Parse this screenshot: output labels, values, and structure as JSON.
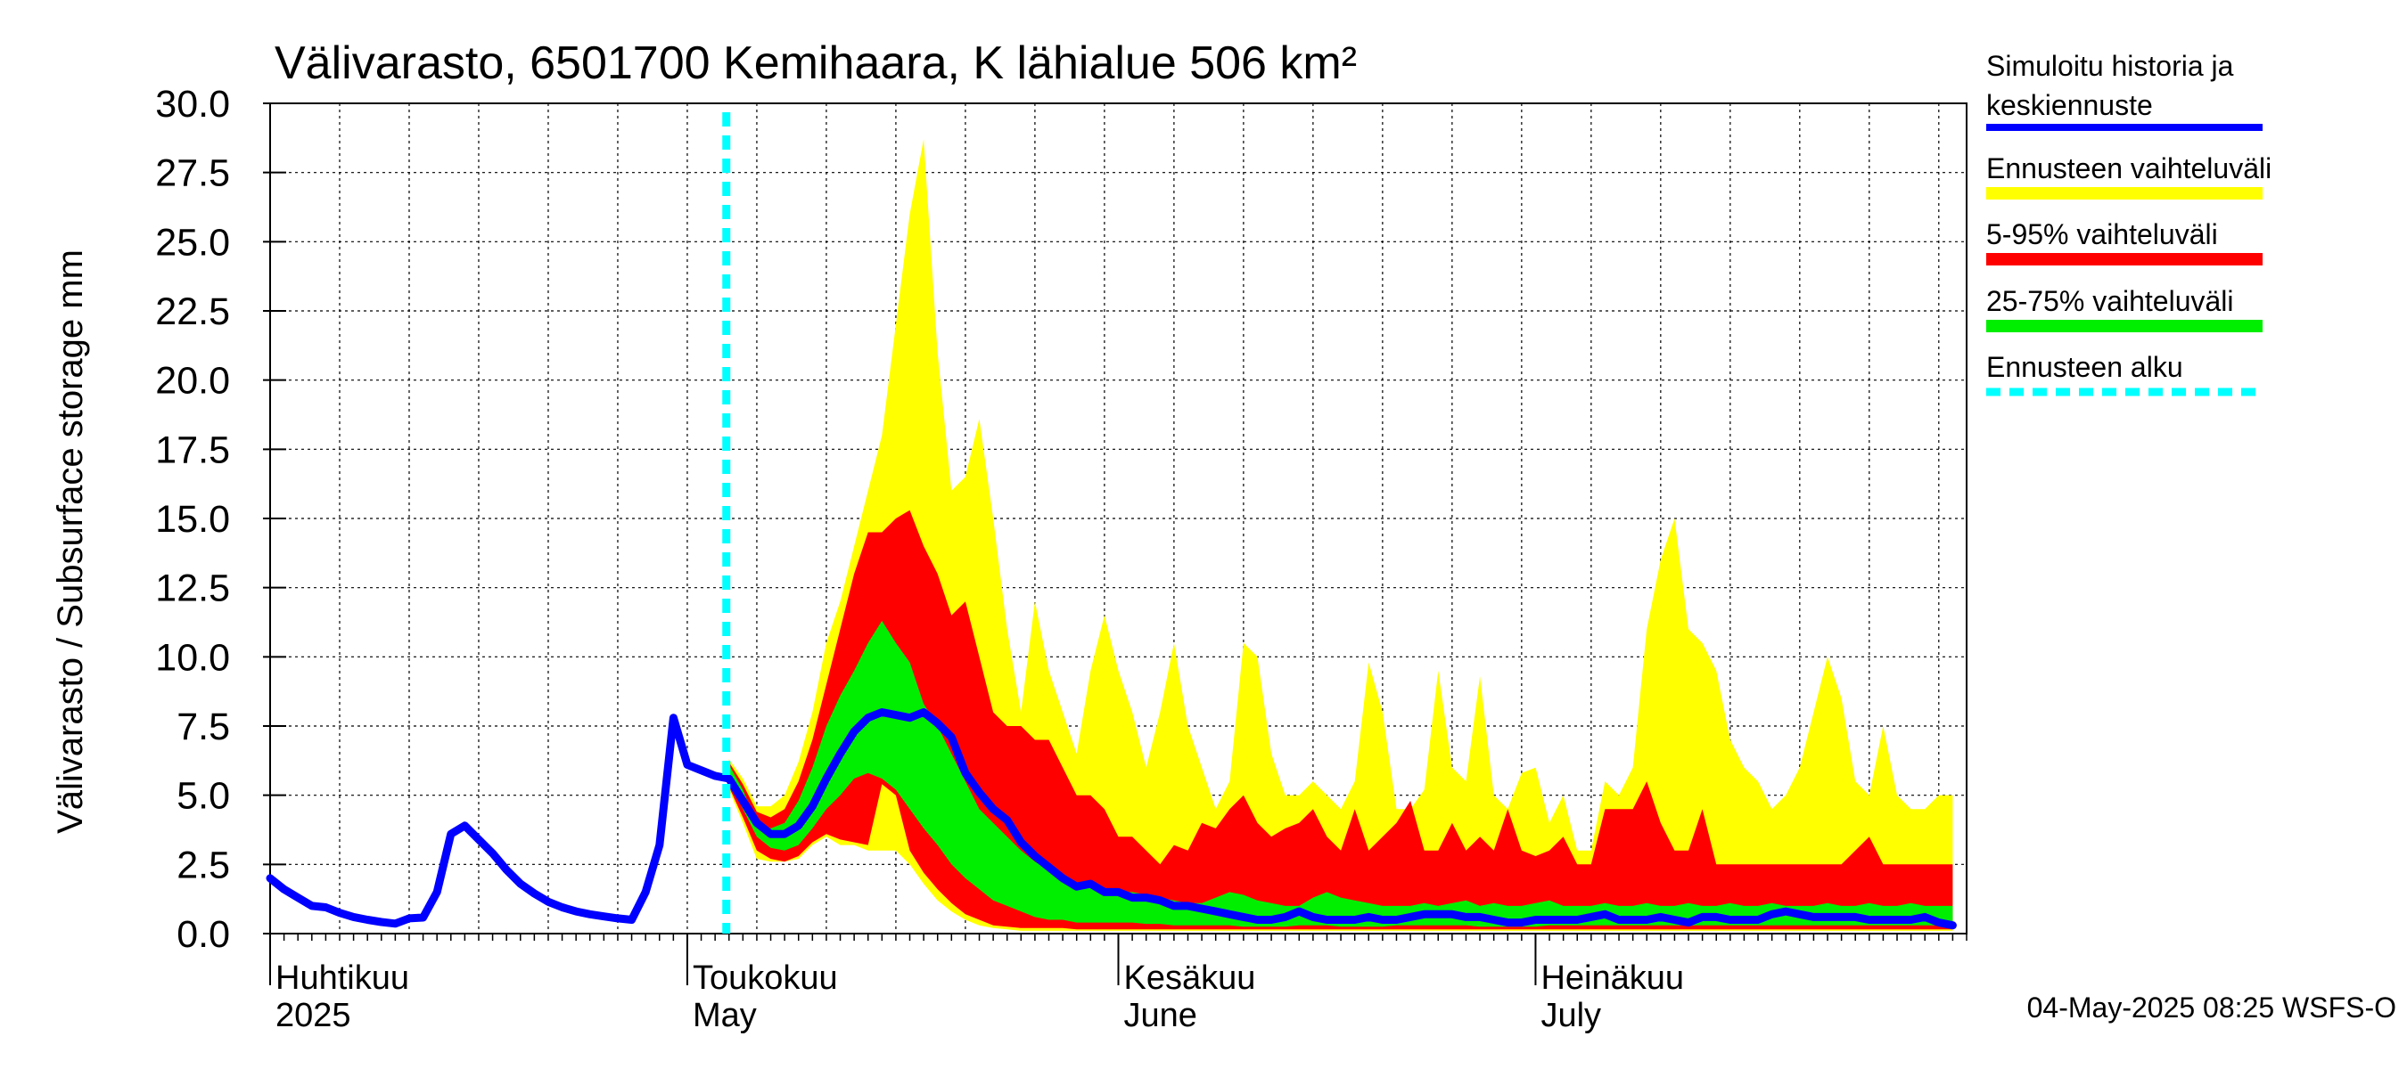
{
  "chart_data": {
    "type": "area",
    "title": "Välivarasto, 6501700 Kemihaara, K lähialue 506 km²",
    "ylabel": "Välivarasto / Subsurface storage  mm",
    "ylim": [
      0,
      30
    ],
    "yticks": [
      "0.0",
      "2.5",
      "5.0",
      "7.5",
      "10.0",
      "12.5",
      "15.0",
      "17.5",
      "20.0",
      "22.5",
      "25.0",
      "27.5",
      "30.0"
    ],
    "x_start": "2025-04-01",
    "x_end": "2025-07-31",
    "forecast_start": "2025-05-04",
    "grid": true,
    "months": [
      {
        "date": "2025-04-01",
        "line1": "Huhtikuu",
        "line2": "2025"
      },
      {
        "date": "2025-05-01",
        "line1": "Toukokuu",
        "line2": "May"
      },
      {
        "date": "2025-06-01",
        "line1": "Kesäkuu",
        "line2": "June"
      },
      {
        "date": "2025-07-01",
        "line1": "Heinäkuu",
        "line2": "July"
      }
    ],
    "history": {
      "dates": [
        "2025-04-01",
        "2025-04-02",
        "2025-04-03",
        "2025-04-04",
        "2025-04-05",
        "2025-04-06",
        "2025-04-07",
        "2025-04-08",
        "2025-04-09",
        "2025-04-10",
        "2025-04-11",
        "2025-04-12",
        "2025-04-13",
        "2025-04-14",
        "2025-04-15",
        "2025-04-16",
        "2025-04-17",
        "2025-04-18",
        "2025-04-19",
        "2025-04-20",
        "2025-04-21",
        "2025-04-22",
        "2025-04-23",
        "2025-04-24",
        "2025-04-25",
        "2025-04-26",
        "2025-04-27",
        "2025-04-28",
        "2025-04-29",
        "2025-04-30",
        "2025-05-01",
        "2025-05-02",
        "2025-05-03",
        "2025-05-04"
      ],
      "values": [
        2.0,
        1.6,
        1.3,
        1.0,
        0.95,
        0.75,
        0.6,
        0.5,
        0.42,
        0.36,
        0.55,
        0.58,
        1.5,
        3.6,
        3.9,
        3.4,
        2.9,
        2.3,
        1.8,
        1.45,
        1.15,
        0.95,
        0.8,
        0.7,
        0.62,
        0.55,
        0.5,
        1.5,
        3.2,
        7.8,
        6.1,
        5.9,
        5.7,
        5.6
      ]
    },
    "forecast": {
      "dates": [
        "2025-05-04",
        "2025-05-05",
        "2025-05-06",
        "2025-05-07",
        "2025-05-08",
        "2025-05-09",
        "2025-05-10",
        "2025-05-11",
        "2025-05-12",
        "2025-05-13",
        "2025-05-14",
        "2025-05-15",
        "2025-05-16",
        "2025-05-17",
        "2025-05-18",
        "2025-05-19",
        "2025-05-20",
        "2025-05-21",
        "2025-05-22",
        "2025-05-23",
        "2025-05-24",
        "2025-05-25",
        "2025-05-26",
        "2025-05-27",
        "2025-05-28",
        "2025-05-29",
        "2025-05-30",
        "2025-05-31",
        "2025-06-01",
        "2025-06-02",
        "2025-06-03",
        "2025-06-04",
        "2025-06-05",
        "2025-06-06",
        "2025-06-07",
        "2025-06-08",
        "2025-06-09",
        "2025-06-10",
        "2025-06-11",
        "2025-06-12",
        "2025-06-13",
        "2025-06-14",
        "2025-06-15",
        "2025-06-16",
        "2025-06-17",
        "2025-06-18",
        "2025-06-19",
        "2025-06-20",
        "2025-06-21",
        "2025-06-22",
        "2025-06-23",
        "2025-06-24",
        "2025-06-25",
        "2025-06-26",
        "2025-06-27",
        "2025-06-28",
        "2025-06-29",
        "2025-06-30",
        "2025-07-01",
        "2025-07-02",
        "2025-07-03",
        "2025-07-04",
        "2025-07-05",
        "2025-07-06",
        "2025-07-07",
        "2025-07-08",
        "2025-07-09",
        "2025-07-10",
        "2025-07-11",
        "2025-07-12",
        "2025-07-13",
        "2025-07-14",
        "2025-07-15",
        "2025-07-16",
        "2025-07-17",
        "2025-07-18",
        "2025-07-19",
        "2025-07-20",
        "2025-07-21",
        "2025-07-22",
        "2025-07-23",
        "2025-07-24",
        "2025-07-25",
        "2025-07-26",
        "2025-07-27",
        "2025-07-28",
        "2025-07-29",
        "2025-07-30",
        "2025-07-31"
      ],
      "yellow_upper": [
        6.3,
        5.6,
        4.6,
        4.6,
        5.0,
        6.2,
        8.0,
        10.5,
        12.0,
        14.0,
        16.0,
        18.0,
        22.0,
        26.0,
        28.7,
        21.0,
        16.0,
        16.5,
        18.6,
        15.0,
        11.0,
        8.0,
        12.0,
        9.5,
        8.0,
        6.5,
        9.5,
        11.5,
        9.5,
        8.0,
        6.0,
        8.0,
        10.5,
        7.5,
        6.0,
        4.5,
        5.5,
        10.5,
        10.0,
        6.5,
        5.0,
        5.0,
        5.5,
        5.0,
        4.5,
        5.5,
        9.8,
        8.0,
        4.5,
        4.5,
        5.2,
        9.5,
        6.0,
        5.5,
        9.3,
        5.0,
        4.5,
        5.8,
        6.0,
        4.0,
        5.0,
        3.0,
        3.0,
        5.5,
        5.0,
        6.0,
        11.0,
        13.5,
        15.0,
        11.0,
        10.5,
        9.5,
        7.0,
        6.0,
        5.5,
        4.5,
        5.0,
        6.0,
        8.0,
        10.0,
        8.5,
        5.5,
        5.0,
        7.5,
        5.0,
        4.5,
        4.5,
        5.0,
        5.0
      ],
      "red_upper": [
        6.2,
        5.4,
        4.4,
        4.2,
        4.5,
        5.5,
        7.0,
        9.0,
        11.0,
        13.0,
        14.5,
        14.5,
        15.0,
        15.3,
        14.0,
        13.0,
        11.5,
        12.0,
        10.0,
        8.0,
        7.5,
        7.5,
        7.0,
        7.0,
        6.0,
        5.0,
        5.0,
        4.5,
        3.5,
        3.5,
        3.0,
        2.5,
        3.2,
        3.0,
        4.0,
        3.8,
        4.5,
        5.0,
        4.0,
        3.5,
        3.8,
        4.0,
        4.5,
        3.5,
        3.0,
        4.5,
        3.0,
        3.5,
        4.0,
        4.8,
        3.0,
        3.0,
        4.0,
        3.0,
        3.5,
        3.0,
        4.5,
        3.0,
        2.8,
        3.0,
        3.5,
        2.5,
        2.5,
        4.5,
        4.5,
        4.5,
        5.5,
        4.0,
        3.0,
        3.0,
        4.5,
        2.5,
        2.5,
        2.5,
        2.5,
        2.5,
        2.5,
        2.5,
        2.5,
        2.5,
        2.5,
        3.0,
        3.5,
        2.5,
        2.5,
        2.5,
        2.5,
        2.5,
        2.5
      ],
      "green_upper": [
        6.1,
        5.2,
        4.0,
        3.8,
        4.0,
        4.8,
        6.0,
        7.5,
        8.6,
        9.5,
        10.5,
        11.3,
        10.5,
        9.8,
        8.3,
        7.5,
        6.5,
        5.5,
        4.5,
        4.0,
        3.5,
        3.0,
        2.6,
        2.3,
        2.0,
        1.8,
        1.7,
        1.6,
        1.5,
        1.5,
        1.4,
        1.3,
        1.2,
        1.1,
        1.1,
        1.3,
        1.5,
        1.4,
        1.2,
        1.1,
        1.0,
        1.0,
        1.3,
        1.5,
        1.3,
        1.2,
        1.1,
        1.0,
        1.0,
        1.0,
        1.1,
        1.0,
        1.1,
        1.2,
        1.0,
        1.1,
        1.0,
        1.0,
        1.1,
        1.2,
        1.0,
        1.0,
        1.0,
        1.1,
        1.0,
        1.0,
        1.1,
        1.0,
        1.0,
        1.1,
        1.0,
        1.0,
        1.1,
        1.0,
        1.0,
        1.1,
        1.0,
        1.0,
        1.0,
        1.1,
        1.0,
        1.0,
        1.1,
        1.0,
        1.0,
        1.1,
        1.0,
        1.0,
        1.0
      ],
      "median": [
        5.6,
        4.8,
        4.0,
        3.6,
        3.6,
        3.9,
        4.6,
        5.6,
        6.5,
        7.3,
        7.8,
        8.0,
        7.9,
        7.8,
        8.0,
        7.6,
        7.1,
        5.8,
        5.1,
        4.5,
        4.1,
        3.3,
        2.8,
        2.4,
        2.0,
        1.7,
        1.8,
        1.5,
        1.5,
        1.3,
        1.3,
        1.2,
        1.0,
        1.0,
        0.9,
        0.8,
        0.7,
        0.6,
        0.5,
        0.5,
        0.6,
        0.8,
        0.6,
        0.5,
        0.5,
        0.5,
        0.6,
        0.5,
        0.5,
        0.6,
        0.7,
        0.7,
        0.7,
        0.6,
        0.6,
        0.5,
        0.4,
        0.4,
        0.5,
        0.5,
        0.5,
        0.5,
        0.6,
        0.7,
        0.5,
        0.5,
        0.5,
        0.6,
        0.5,
        0.4,
        0.6,
        0.6,
        0.5,
        0.5,
        0.5,
        0.7,
        0.8,
        0.7,
        0.6,
        0.6,
        0.6,
        0.6,
        0.5,
        0.5,
        0.5,
        0.5,
        0.6,
        0.4,
        0.3
      ],
      "green_lower": [
        5.5,
        4.5,
        3.5,
        3.1,
        3.0,
        3.2,
        3.8,
        4.5,
        5.0,
        5.6,
        5.8,
        5.6,
        5.2,
        4.5,
        3.8,
        3.2,
        2.5,
        2.0,
        1.6,
        1.2,
        1.0,
        0.8,
        0.6,
        0.5,
        0.5,
        0.4,
        0.4,
        0.4,
        0.4,
        0.4,
        0.35,
        0.35,
        0.3,
        0.3,
        0.3,
        0.3,
        0.3,
        0.25,
        0.25,
        0.25,
        0.25,
        0.3,
        0.3,
        0.3,
        0.25,
        0.25,
        0.25,
        0.25,
        0.3,
        0.3,
        0.3,
        0.3,
        0.3,
        0.3,
        0.25,
        0.25,
        0.25,
        0.25,
        0.25,
        0.3,
        0.3,
        0.3,
        0.3,
        0.3,
        0.3,
        0.3,
        0.3,
        0.3,
        0.3,
        0.3,
        0.3,
        0.3,
        0.3,
        0.3,
        0.3,
        0.3,
        0.3,
        0.3,
        0.3,
        0.3,
        0.3,
        0.3,
        0.3,
        0.3,
        0.3,
        0.3,
        0.3,
        0.3,
        0.3
      ],
      "red_lower": [
        5.3,
        4.2,
        3.0,
        2.7,
        2.6,
        2.8,
        3.3,
        3.6,
        3.4,
        3.3,
        3.2,
        5.4,
        5.0,
        3.0,
        2.2,
        1.6,
        1.1,
        0.7,
        0.5,
        0.3,
        0.25,
        0.2,
        0.2,
        0.2,
        0.2,
        0.15,
        0.15,
        0.15,
        0.15,
        0.15,
        0.15,
        0.15,
        0.15,
        0.15,
        0.15,
        0.15,
        0.15,
        0.15,
        0.15,
        0.15,
        0.15,
        0.15,
        0.15,
        0.15,
        0.15,
        0.15,
        0.15,
        0.15,
        0.15,
        0.15,
        0.15,
        0.15,
        0.15,
        0.15,
        0.15,
        0.15,
        0.15,
        0.15,
        0.15,
        0.15,
        0.15,
        0.15,
        0.15,
        0.15,
        0.15,
        0.15,
        0.15,
        0.15,
        0.15,
        0.15,
        0.15,
        0.15,
        0.15,
        0.15,
        0.15,
        0.15,
        0.15,
        0.15,
        0.15,
        0.15,
        0.15,
        0.15,
        0.15,
        0.15,
        0.15,
        0.15,
        0.15,
        0.15,
        0.15
      ],
      "yellow_lower": [
        5.2,
        4.0,
        2.7,
        2.6,
        2.6,
        2.7,
        3.2,
        3.5,
        3.2,
        3.2,
        3.0,
        3.0,
        3.0,
        2.5,
        1.8,
        1.2,
        0.8,
        0.5,
        0.3,
        0.2,
        0.15,
        0.1,
        0.1,
        0.1,
        0.1,
        0.1,
        0.1,
        0.1,
        0.1,
        0.1,
        0.1,
        0.1,
        0.1,
        0.1,
        0.1,
        0.1,
        0.1,
        0.1,
        0.1,
        0.1,
        0.1,
        0.1,
        0.1,
        0.1,
        0.1,
        0.1,
        0.1,
        0.1,
        0.1,
        0.1,
        0.1,
        0.1,
        0.1,
        0.1,
        0.1,
        0.1,
        0.1,
        0.1,
        0.1,
        0.1,
        0.1,
        0.1,
        0.1,
        0.1,
        0.1,
        0.1,
        0.1,
        0.1,
        0.1,
        0.1,
        0.1,
        0.1,
        0.1,
        0.1,
        0.1,
        0.1,
        0.1,
        0.1,
        0.1,
        0.1,
        0.1,
        0.1,
        0.1,
        0.1,
        0.1,
        0.1,
        0.1,
        0.1,
        0.1
      ]
    },
    "legend": [
      {
        "key": "history",
        "lines": [
          "Simuloitu historia ja",
          "keskiennuste"
        ],
        "color": "#0000ff",
        "style": "line"
      },
      {
        "key": "range",
        "lines": [
          "Ennusteen vaihteluväli"
        ],
        "color": "#ffff00",
        "style": "band"
      },
      {
        "key": "p5_95",
        "lines": [
          "5-95% vaihteluväli"
        ],
        "color": "#ff0000",
        "style": "band"
      },
      {
        "key": "p25_75",
        "lines": [
          "25-75% vaihteluväli"
        ],
        "color": "#00ee00",
        "style": "band"
      },
      {
        "key": "fstart",
        "lines": [
          "Ennusteen alku"
        ],
        "color": "#00ffff",
        "style": "dashed"
      }
    ],
    "colors": {
      "history": "#0000ff",
      "yellow": "#ffff00",
      "red": "#ff0000",
      "green": "#00ee00",
      "forecast_line": "#00ffff",
      "grid": "#000000"
    }
  },
  "footer": "04-May-2025 08:25 WSFS-O"
}
